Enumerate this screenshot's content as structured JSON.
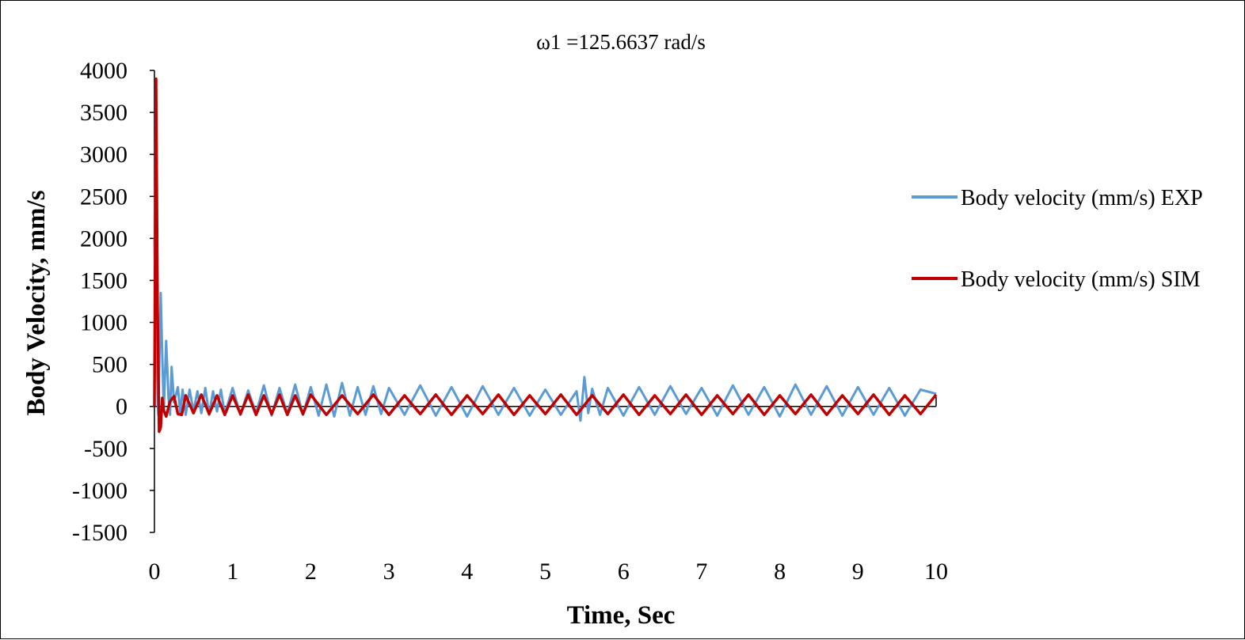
{
  "chart_data": {
    "type": "line",
    "title": "ω1 =125.6637 rad/s",
    "xlabel": "Time, Sec",
    "ylabel": "Body Velocity, mm/s",
    "xlim": [
      0,
      10
    ],
    "ylim": [
      -1500,
      4000
    ],
    "x_ticks": [
      "0",
      "1",
      "2",
      "3",
      "4",
      "5",
      "6",
      "7",
      "8",
      "9",
      "10"
    ],
    "y_ticks": [
      "4000",
      "3500",
      "3000",
      "2500",
      "2000",
      "1500",
      "1000",
      "500",
      "0",
      "-500",
      "-1000",
      "-1500"
    ],
    "grid": false,
    "legend_position": "right",
    "series": [
      {
        "name": "Body velocity (mm/s) EXP",
        "color": "#5b9bd5",
        "x": [
          0.0,
          0.02,
          0.05,
          0.08,
          0.1,
          0.12,
          0.15,
          0.18,
          0.2,
          0.22,
          0.25,
          0.3,
          0.33,
          0.36,
          0.4,
          0.45,
          0.5,
          0.55,
          0.6,
          0.65,
          0.7,
          0.75,
          0.8,
          0.85,
          0.9,
          1.0,
          1.1,
          1.2,
          1.3,
          1.4,
          1.5,
          1.6,
          1.7,
          1.8,
          1.9,
          2.0,
          2.1,
          2.2,
          2.3,
          2.4,
          2.5,
          2.6,
          2.7,
          2.8,
          2.9,
          3.0,
          3.2,
          3.4,
          3.6,
          3.8,
          4.0,
          4.2,
          4.4,
          4.6,
          4.8,
          5.0,
          5.2,
          5.4,
          5.45,
          5.5,
          5.55,
          5.6,
          5.7,
          5.8,
          6.0,
          6.2,
          6.4,
          6.6,
          6.8,
          7.0,
          7.2,
          7.4,
          7.6,
          7.8,
          8.0,
          8.2,
          8.4,
          8.6,
          8.8,
          9.0,
          9.2,
          9.4,
          9.6,
          9.8,
          10.0
        ],
        "y": [
          2000,
          800,
          -100,
          1350,
          600,
          -50,
          780,
          100,
          -100,
          470,
          50,
          230,
          -80,
          200,
          -100,
          200,
          -60,
          180,
          -80,
          220,
          -100,
          180,
          -60,
          200,
          -90,
          220,
          -100,
          190,
          -80,
          250,
          -110,
          220,
          -90,
          260,
          -100,
          230,
          -110,
          260,
          -120,
          280,
          -110,
          230,
          -100,
          240,
          -90,
          220,
          -100,
          250,
          -110,
          230,
          -120,
          240,
          -100,
          220,
          -110,
          200,
          -100,
          180,
          -170,
          350,
          -80,
          210,
          -100,
          220,
          -110,
          230,
          -100,
          240,
          -90,
          220,
          -110,
          250,
          -100,
          230,
          -120,
          260,
          -100,
          240,
          -110,
          230,
          -100,
          220,
          -110,
          200,
          150
        ]
      },
      {
        "name": "Body velocity (mm/s) SIM",
        "color": "#c00000",
        "x": [
          0.0,
          0.02,
          0.04,
          0.06,
          0.08,
          0.1,
          0.12,
          0.15,
          0.2,
          0.25,
          0.3,
          0.35,
          0.4,
          0.5,
          0.6,
          0.7,
          0.8,
          0.9,
          1.0,
          1.1,
          1.2,
          1.3,
          1.4,
          1.5,
          1.6,
          1.7,
          1.8,
          1.9,
          2.0,
          2.2,
          2.4,
          2.6,
          2.8,
          3.0,
          3.2,
          3.4,
          3.6,
          3.8,
          4.0,
          4.2,
          4.4,
          4.6,
          4.8,
          5.0,
          5.2,
          5.4,
          5.6,
          5.8,
          6.0,
          6.2,
          6.4,
          6.6,
          6.8,
          7.0,
          7.2,
          7.4,
          7.6,
          7.8,
          8.0,
          8.2,
          8.4,
          8.6,
          8.8,
          9.0,
          9.2,
          9.4,
          9.6,
          9.8,
          10.0
        ],
        "y": [
          0,
          3900,
          1200,
          -300,
          -250,
          100,
          -50,
          -120,
          60,
          120,
          -90,
          -100,
          130,
          -80,
          140,
          -90,
          130,
          -100,
          130,
          -90,
          140,
          -100,
          130,
          -90,
          140,
          -100,
          130,
          -90,
          140,
          -100,
          130,
          -90,
          140,
          -100,
          130,
          -90,
          140,
          -100,
          130,
          -90,
          140,
          -100,
          130,
          -90,
          140,
          -100,
          130,
          -90,
          140,
          -100,
          130,
          -90,
          140,
          -100,
          130,
          -90,
          140,
          -100,
          130,
          -90,
          140,
          -100,
          130,
          -90,
          140,
          -100,
          130,
          -90,
          140
        ]
      }
    ]
  }
}
